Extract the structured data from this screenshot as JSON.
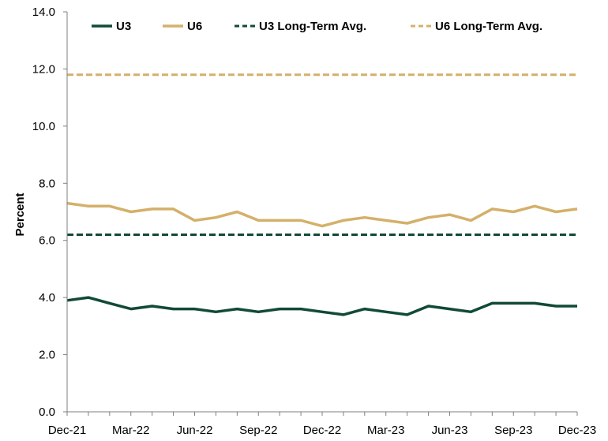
{
  "chart_data": {
    "type": "line",
    "ylabel": "Percent",
    "xlabel": "",
    "ylim": [
      0,
      14
    ],
    "yticks": [
      "0.0",
      "2.0",
      "4.0",
      "6.0",
      "8.0",
      "10.0",
      "12.0",
      "14.0"
    ],
    "x_tick_labels": [
      "Dec-21",
      "Mar-22",
      "Jun-22",
      "Sep-22",
      "Dec-22",
      "Mar-23",
      "Jun-23",
      "Sep-23",
      "Dec-23"
    ],
    "x": [
      "Dec-21",
      "Jan-22",
      "Feb-22",
      "Mar-22",
      "Apr-22",
      "May-22",
      "Jun-22",
      "Jul-22",
      "Aug-22",
      "Sep-22",
      "Oct-22",
      "Nov-22",
      "Dec-22",
      "Jan-23",
      "Feb-23",
      "Mar-23",
      "Apr-23",
      "May-23",
      "Jun-23",
      "Jul-23",
      "Aug-23",
      "Sep-23",
      "Oct-23",
      "Nov-23",
      "Dec-23"
    ],
    "grid": false,
    "legend_position": "top",
    "series": [
      {
        "name": "U3",
        "style": "solid",
        "color": "#114a36",
        "values": [
          3.9,
          4.0,
          3.8,
          3.6,
          3.7,
          3.6,
          3.6,
          3.5,
          3.6,
          3.5,
          3.6,
          3.6,
          3.5,
          3.4,
          3.6,
          3.5,
          3.4,
          3.7,
          3.6,
          3.5,
          3.8,
          3.8,
          3.8,
          3.7,
          3.7
        ]
      },
      {
        "name": "U6",
        "style": "solid",
        "color": "#d4b06a",
        "values": [
          7.3,
          7.2,
          7.2,
          7.0,
          7.1,
          7.1,
          6.7,
          6.8,
          7.0,
          6.7,
          6.7,
          6.7,
          6.5,
          6.7,
          6.8,
          6.7,
          6.6,
          6.8,
          6.9,
          6.7,
          7.1,
          7.0,
          7.2,
          7.0,
          7.1
        ]
      },
      {
        "name": "U3 Long-Term Avg.",
        "style": "dashed",
        "color": "#114a36",
        "values": [
          6.2,
          6.2,
          6.2,
          6.2,
          6.2,
          6.2,
          6.2,
          6.2,
          6.2,
          6.2,
          6.2,
          6.2,
          6.2,
          6.2,
          6.2,
          6.2,
          6.2,
          6.2,
          6.2,
          6.2,
          6.2,
          6.2,
          6.2,
          6.2,
          6.2
        ]
      },
      {
        "name": "U6 Long-Term Avg.",
        "style": "dashed",
        "color": "#d4b06a",
        "values": [
          11.8,
          11.8,
          11.8,
          11.8,
          11.8,
          11.8,
          11.8,
          11.8,
          11.8,
          11.8,
          11.8,
          11.8,
          11.8,
          11.8,
          11.8,
          11.8,
          11.8,
          11.8,
          11.8,
          11.8,
          11.8,
          11.8,
          11.8,
          11.8,
          11.8
        ]
      }
    ]
  }
}
